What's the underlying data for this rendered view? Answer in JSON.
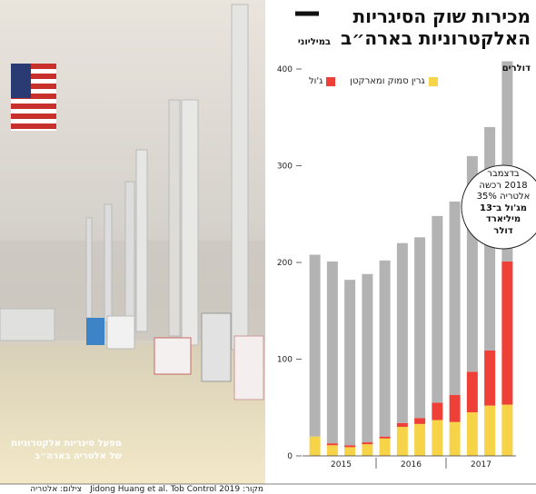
{
  "chart_data": {
    "type": "bar",
    "stacked": true,
    "title": "מכירות שוק הסיגריות האלקטרוניות בארה״ב",
    "subtitle": "במיליוני דולרים",
    "categories": [
      null,
      null,
      null,
      null,
      null,
      null,
      null,
      null,
      null,
      null,
      null,
      null
    ],
    "x_group_labels": [
      "2015",
      "2016",
      "2017"
    ],
    "series": [
      {
        "name": "גרין סמוק ומארקטן",
        "color": "#f7d347",
        "values": [
          20,
          11,
          9,
          12,
          18,
          30,
          33,
          37,
          35,
          45,
          52,
          53
        ]
      },
      {
        "name": "ג'ול",
        "color": "#ee4036",
        "values": [
          0,
          2,
          2,
          2,
          2,
          4,
          6,
          18,
          28,
          42,
          57,
          148
        ]
      },
      {
        "color": "#b3b3b3",
        "values": [
          188,
          188,
          171,
          174,
          182,
          186,
          187,
          193,
          200,
          223,
          231,
          207
        ]
      }
    ],
    "ylim": [
      0,
      400
    ],
    "yticks": [
      0,
      100,
      200,
      300,
      400
    ],
    "grid": false,
    "annotation": [
      "בדצמבר",
      "2018 רכשה",
      "אלטריה 35%",
      "מג'ול ב־13",
      "מיליארד",
      "דולר"
    ]
  },
  "photo": {
    "caption": "מפעל סיגריות אלקטרוניות של אלטריה בארה״ב",
    "credit": "צילום: אלטריה"
  },
  "source": "מקור: Jidong Huang et al. Tob Control 2019"
}
